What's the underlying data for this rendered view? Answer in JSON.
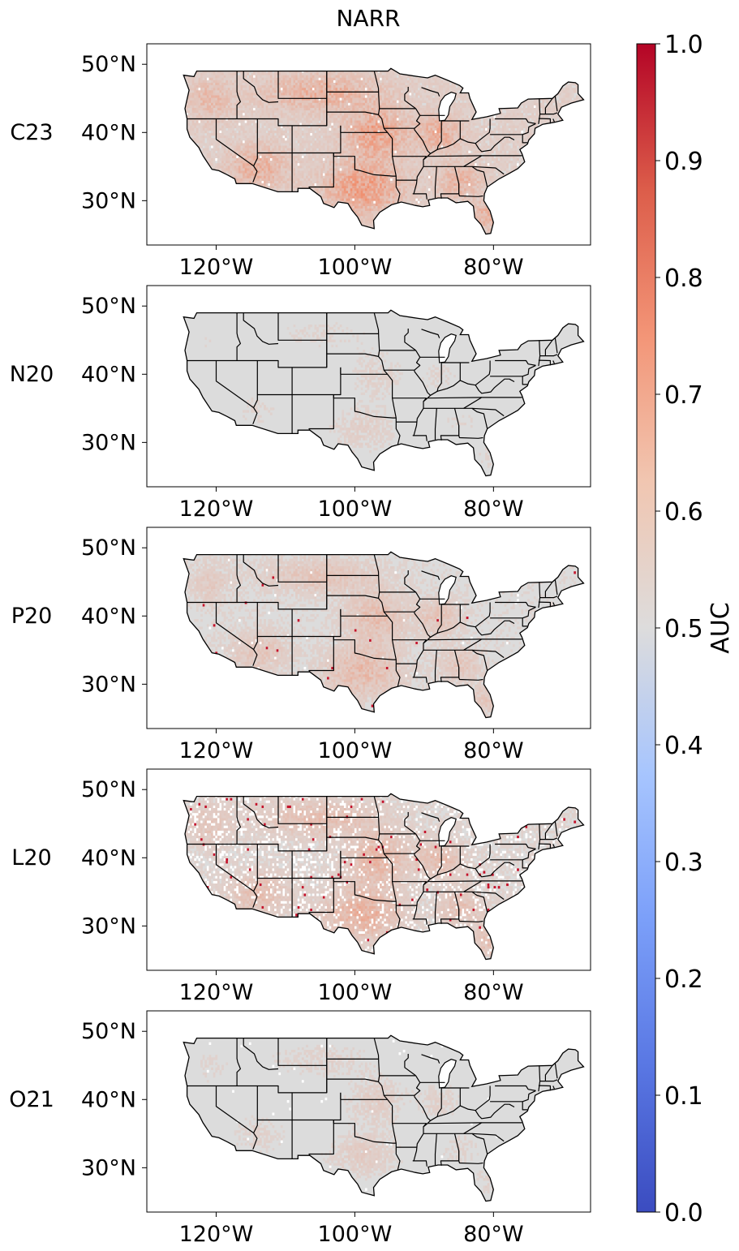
{
  "title": "NARR",
  "panels": [
    {
      "label": "C23",
      "intensity": 0.85,
      "holes": 0.01,
      "hot": 0.0
    },
    {
      "label": "N20",
      "intensity": 0.18,
      "holes": 0.0,
      "hot": 0.0
    },
    {
      "label": "P20",
      "intensity": 0.45,
      "holes": 0.005,
      "hot": 0.002
    },
    {
      "label": "L20",
      "intensity": 0.55,
      "holes": 0.12,
      "hot": 0.012
    },
    {
      "label": "O21",
      "intensity": 0.22,
      "holes": 0.004,
      "hot": 0.0
    }
  ],
  "lat_ticks": [
    "50°N",
    "40°N",
    "30°N"
  ],
  "lon_ticks": [
    "120°W",
    "100°W",
    "80°W"
  ],
  "colorbar": {
    "label": "AUC",
    "min": 0.0,
    "max": 1.0,
    "ticks": [
      "0.0",
      "0.1",
      "0.2",
      "0.3",
      "0.4",
      "0.5",
      "0.6",
      "0.7",
      "0.8",
      "0.9",
      "1.0"
    ],
    "colormap": [
      "#3b4cc0",
      "#6788ee",
      "#9abbff",
      "#c9d7f0",
      "#dddddd",
      "#f2cbb7",
      "#f6a385",
      "#e26952",
      "#b40426"
    ]
  }
}
